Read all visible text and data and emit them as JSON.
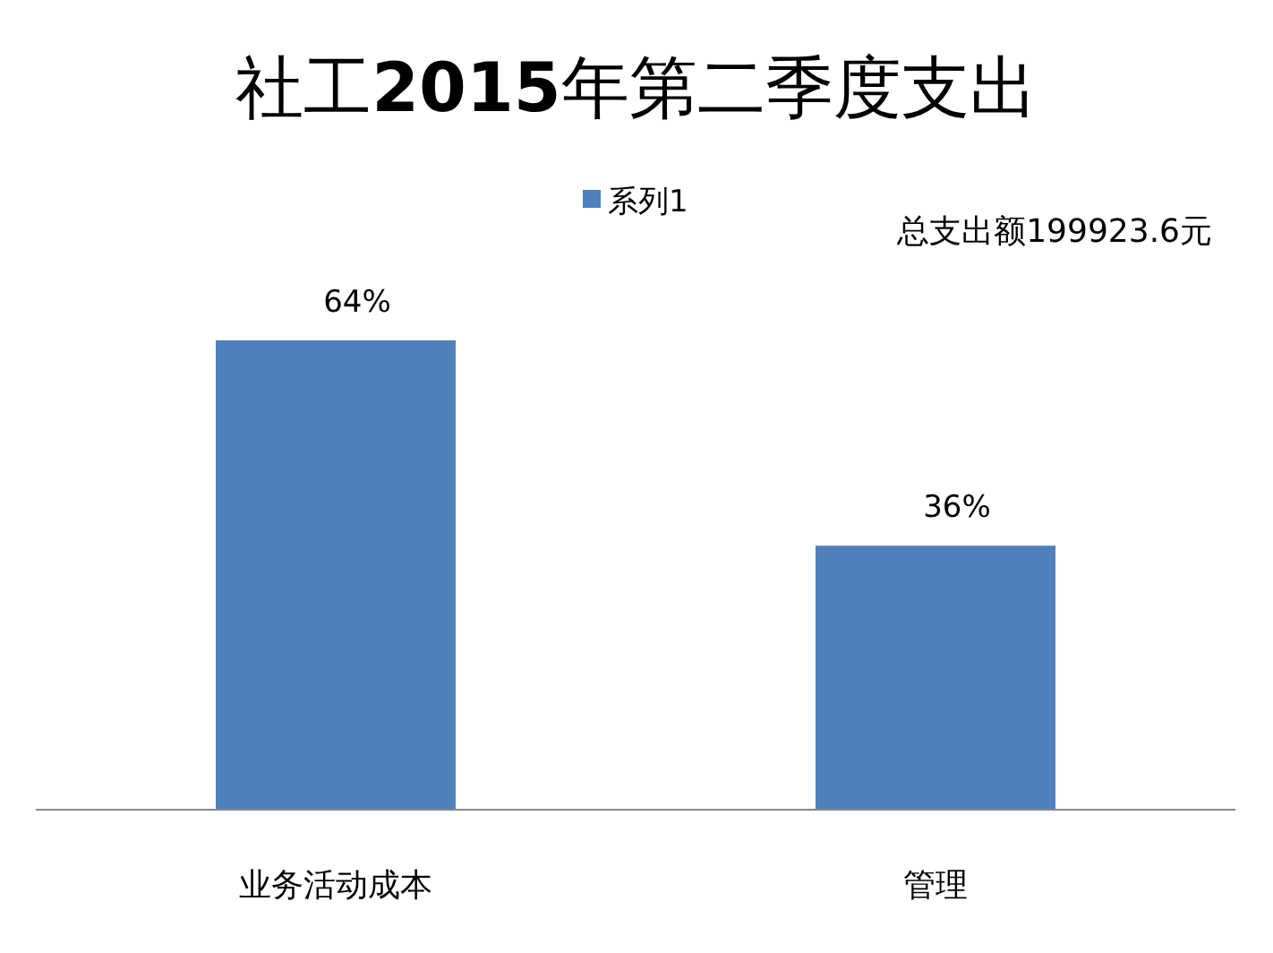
{
  "chart_data": {
    "type": "bar",
    "title": "社工**2015**年第二季度支出",
    "categories": [
      "业务活动成本",
      "管理"
    ],
    "series": [
      {
        "name": "系列1",
        "color": "#4f81bd",
        "values": [
          64,
          36
        ],
        "value_labels": [
          "64%",
          "36%"
        ]
      }
    ],
    "annotations": [
      "总支出额199923.6元"
    ],
    "legend": "top"
  }
}
